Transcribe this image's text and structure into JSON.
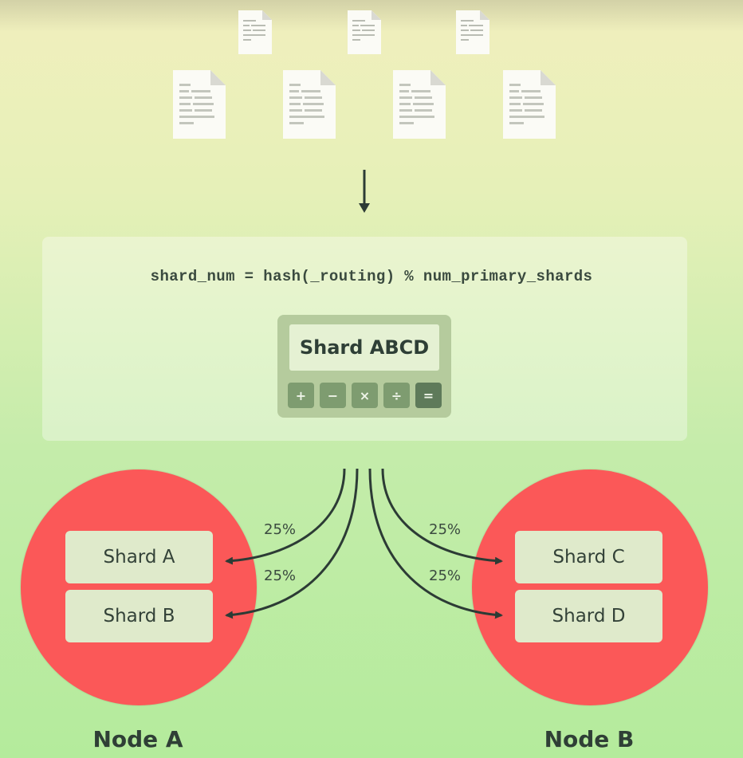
{
  "formula": "shard_num = hash(_routing) % num_primary_shards",
  "calculator": {
    "display": "Shard ABCD",
    "keys": [
      "+",
      "−",
      "×",
      "÷",
      "="
    ]
  },
  "nodes": [
    {
      "label": "Node A",
      "shards": [
        "Shard A",
        "Shard B"
      ]
    },
    {
      "label": "Node B",
      "shards": [
        "Shard C",
        "Shard D"
      ]
    }
  ],
  "flows": [
    {
      "target": "Shard A",
      "percent": "25%"
    },
    {
      "target": "Shard B",
      "percent": "25%"
    },
    {
      "target": "Shard C",
      "percent": "25%"
    },
    {
      "target": "Shard D",
      "percent": "25%"
    }
  ],
  "colors": {
    "node": "#fb5858",
    "shard": "#dfeacb",
    "calculator": "#b5cb9d",
    "text": "#2f3f36"
  },
  "icons": [
    "document-icon",
    "down-arrow-icon",
    "flow-arrow-icon"
  ]
}
